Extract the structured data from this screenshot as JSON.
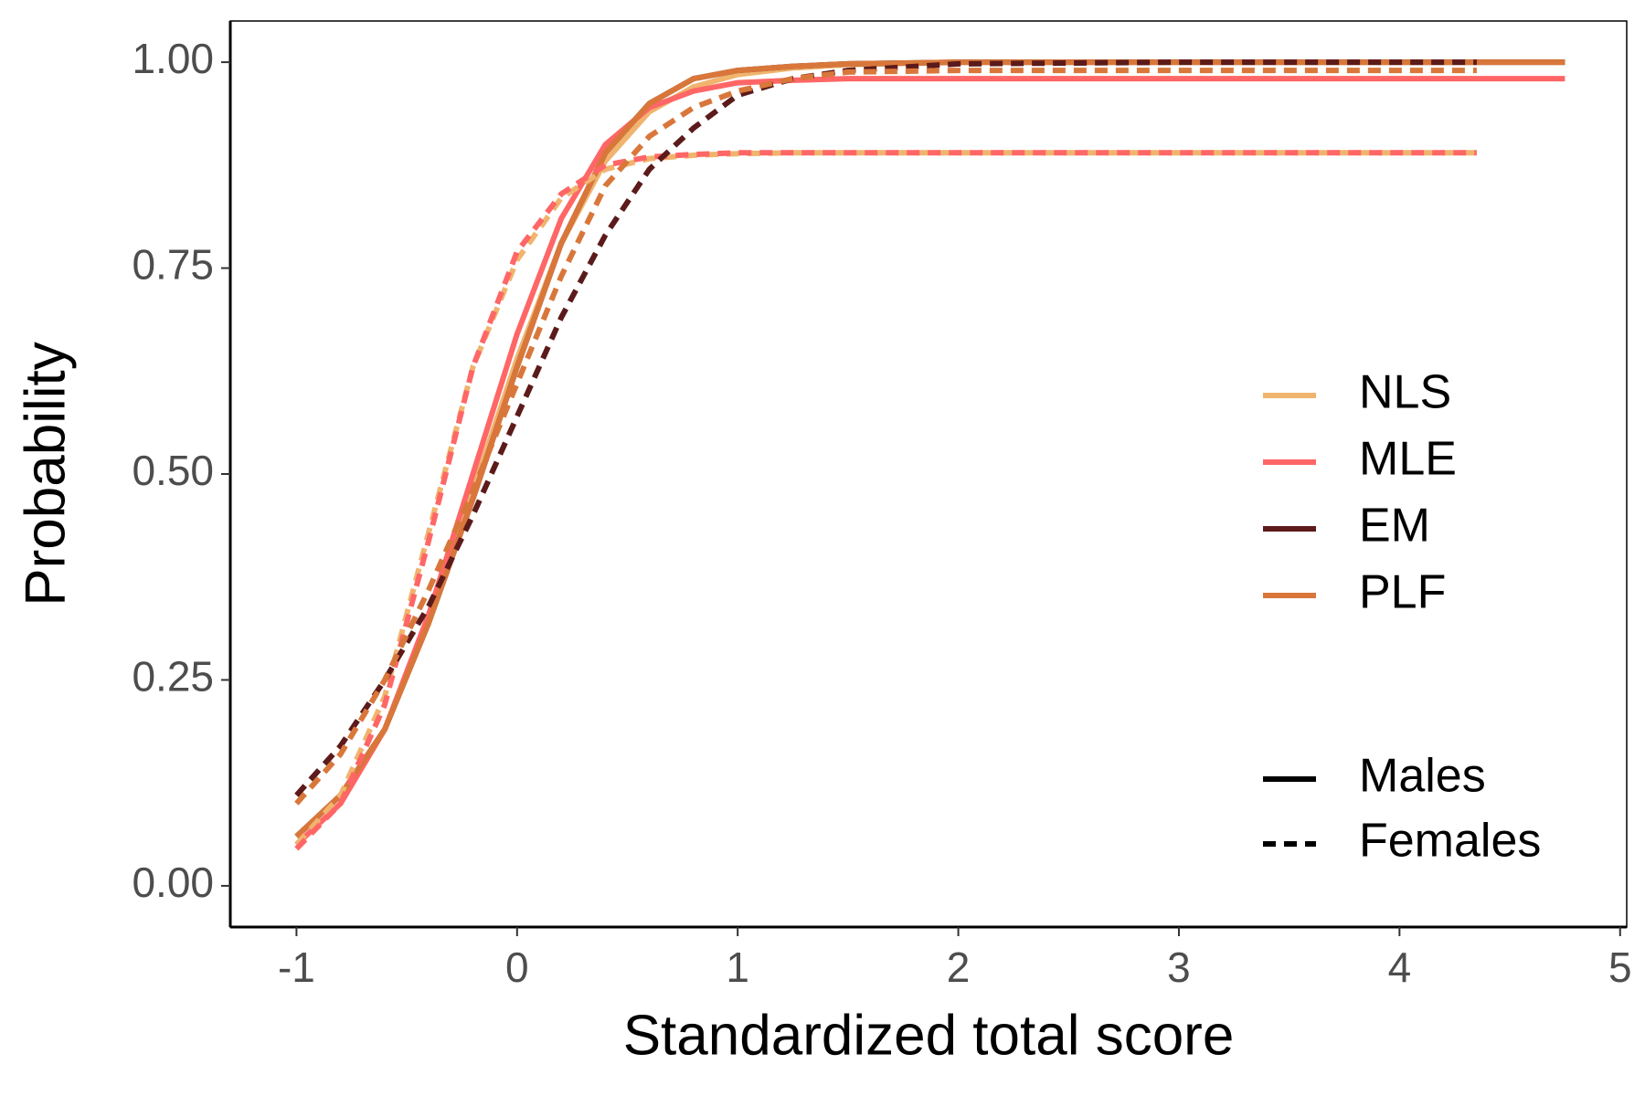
{
  "chart_data": {
    "type": "line",
    "xlabel": "Standardized total score",
    "ylabel": "Probability",
    "xlim": [
      -1.3,
      5.03
    ],
    "xticks": [
      -1,
      0,
      1,
      2,
      3,
      4,
      5
    ],
    "ylim": [
      -0.05,
      1.05
    ],
    "yticks": [
      {
        "value": 0,
        "label": "0.00"
      },
      {
        "value": 0.25,
        "label": "0.25"
      },
      {
        "value": 0.5,
        "label": "0.50"
      },
      {
        "value": 0.75,
        "label": "0.75"
      },
      {
        "value": 1,
        "label": "1.00"
      }
    ],
    "grid": false,
    "legend": {
      "position": "right",
      "colors": [
        {
          "name": "NLS",
          "color": "#f0b46e"
        },
        {
          "name": "MLE",
          "color": "#ff6666"
        },
        {
          "name": "EM",
          "color": "#5c1a1a"
        },
        {
          "name": "PLF",
          "color": "#d9773b"
        }
      ],
      "linetypes": [
        {
          "name": "Males",
          "dash": "solid"
        },
        {
          "name": "Females",
          "dash": "dashed"
        }
      ]
    },
    "series": [
      {
        "name": "NLS",
        "linetype": "Males",
        "color": "#f0b46e",
        "x": [
          -1,
          -0.8,
          -0.6,
          -0.4,
          -0.2,
          0,
          0.2,
          0.4,
          0.6,
          0.8,
          1,
          1.25,
          1.5,
          2,
          3,
          4,
          4.75
        ],
        "values": [
          0.06,
          0.11,
          0.19,
          0.32,
          0.48,
          0.64,
          0.78,
          0.88,
          0.94,
          0.97,
          0.985,
          0.993,
          0.997,
          1,
          1,
          1,
          1
        ]
      },
      {
        "name": "EM",
        "linetype": "Males",
        "color": "#5c1a1a",
        "x": [
          -1,
          -0.8,
          -0.6,
          -0.4,
          -0.2,
          0,
          0.2,
          0.4,
          0.6,
          0.8,
          1,
          1.25,
          1.5,
          2,
          3,
          4,
          4.75
        ],
        "values": [
          0.06,
          0.11,
          0.19,
          0.32,
          0.47,
          0.63,
          0.78,
          0.89,
          0.95,
          0.98,
          0.99,
          0.995,
          0.998,
          1,
          1,
          1,
          1
        ]
      },
      {
        "name": "MLE",
        "linetype": "Males",
        "color": "#ff6666",
        "x": [
          -1,
          -0.8,
          -0.6,
          -0.4,
          -0.2,
          0,
          0.2,
          0.4,
          0.6,
          0.8,
          1,
          1.25,
          1.5,
          2,
          3,
          4,
          4.75
        ],
        "values": [
          0.05,
          0.1,
          0.19,
          0.33,
          0.5,
          0.67,
          0.81,
          0.9,
          0.945,
          0.965,
          0.975,
          0.978,
          0.98,
          0.98,
          0.98,
          0.98,
          0.98
        ]
      },
      {
        "name": "PLF",
        "linetype": "Males",
        "color": "#d9773b",
        "x": [
          -1,
          -0.8,
          -0.6,
          -0.4,
          -0.2,
          0,
          0.2,
          0.4,
          0.6,
          0.8,
          1,
          1.25,
          1.5,
          2,
          3,
          4,
          4.75
        ],
        "values": [
          0.06,
          0.11,
          0.19,
          0.32,
          0.47,
          0.63,
          0.78,
          0.89,
          0.95,
          0.98,
          0.99,
          0.995,
          0.998,
          1,
          1,
          1,
          1
        ]
      },
      {
        "name": "NLS",
        "linetype": "Females",
        "color": "#f0b46e",
        "x": [
          -1,
          -0.8,
          -0.6,
          -0.4,
          -0.2,
          0,
          0.2,
          0.4,
          0.6,
          0.8,
          1,
          1.25,
          1.5,
          2,
          3,
          4,
          4.35
        ],
        "values": [
          0.05,
          0.11,
          0.23,
          0.43,
          0.63,
          0.76,
          0.835,
          0.87,
          0.883,
          0.887,
          0.889,
          0.89,
          0.89,
          0.89,
          0.89,
          0.89,
          0.89
        ]
      },
      {
        "name": "MLE",
        "linetype": "Females",
        "color": "#ff6666",
        "x": [
          -1,
          -0.8,
          -0.6,
          -0.4,
          -0.2,
          0,
          0.2,
          0.4,
          0.6,
          0.8,
          1,
          1.25,
          1.5,
          2,
          3,
          4,
          4.35
        ],
        "values": [
          0.045,
          0.1,
          0.22,
          0.42,
          0.63,
          0.77,
          0.84,
          0.875,
          0.885,
          0.888,
          0.89,
          0.89,
          0.89,
          0.89,
          0.89,
          0.89,
          0.89
        ]
      },
      {
        "name": "EM",
        "linetype": "Females",
        "color": "#5c1a1a",
        "x": [
          -1,
          -0.8,
          -0.6,
          -0.4,
          -0.2,
          0,
          0.2,
          0.4,
          0.6,
          0.8,
          1,
          1.25,
          1.5,
          2,
          3,
          4,
          4.35
        ],
        "values": [
          0.11,
          0.17,
          0.25,
          0.34,
          0.45,
          0.57,
          0.69,
          0.79,
          0.87,
          0.92,
          0.96,
          0.98,
          0.99,
          0.998,
          1,
          1,
          1
        ]
      },
      {
        "name": "PLF",
        "linetype": "Females",
        "color": "#d9773b",
        "x": [
          -1,
          -0.8,
          -0.6,
          -0.4,
          -0.2,
          0,
          0.2,
          0.4,
          0.6,
          0.8,
          1,
          1.25,
          1.5,
          2,
          3,
          4,
          4.35
        ],
        "values": [
          0.1,
          0.16,
          0.25,
          0.36,
          0.48,
          0.61,
          0.74,
          0.85,
          0.91,
          0.945,
          0.965,
          0.98,
          0.988,
          0.99,
          0.99,
          0.99,
          0.99
        ]
      }
    ]
  }
}
